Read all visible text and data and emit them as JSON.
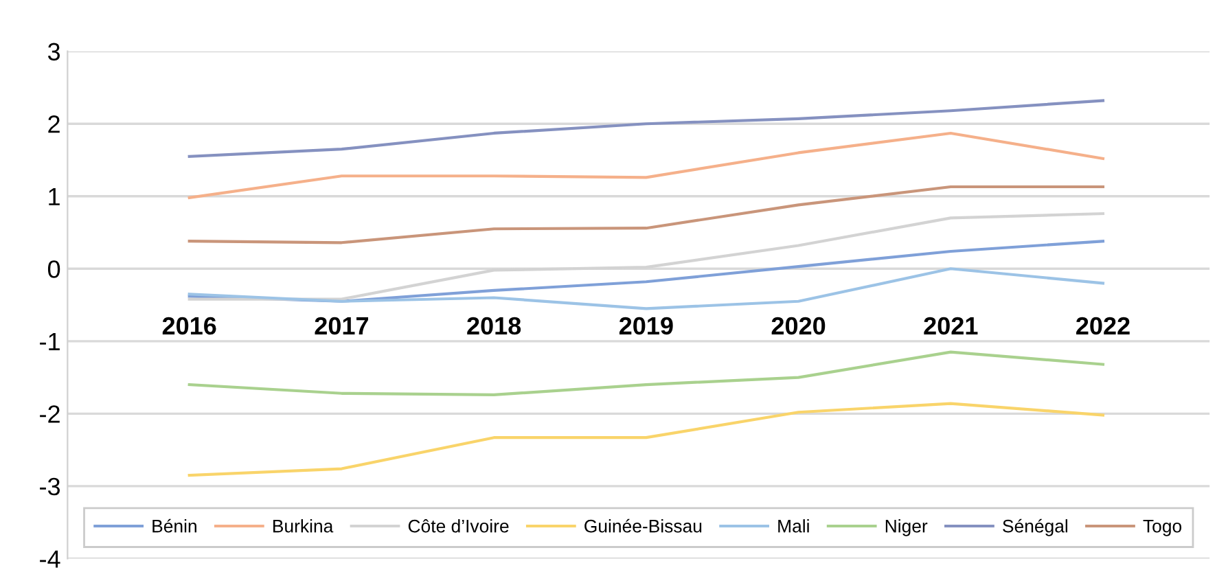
{
  "chart_data": {
    "type": "line",
    "categories": [
      "2016",
      "2017",
      "2018",
      "2019",
      "2020",
      "2021",
      "2022"
    ],
    "series": [
      {
        "name": "Bénin",
        "color": "#7fa0d8",
        "values": [
          -0.38,
          -0.45,
          -0.3,
          -0.18,
          0.03,
          0.24,
          0.38
        ]
      },
      {
        "name": "Burkina",
        "color": "#f5b08a",
        "values": [
          0.98,
          1.28,
          1.28,
          1.26,
          1.6,
          1.87,
          1.52
        ]
      },
      {
        "name": "Côte d’Ivoire",
        "color": "#d3d3d3",
        "values": [
          -0.42,
          -0.42,
          -0.02,
          0.02,
          0.32,
          0.7,
          0.76
        ]
      },
      {
        "name": "Guinée-Bissau",
        "color": "#f9d46a",
        "values": [
          -2.85,
          -2.76,
          -2.33,
          -2.33,
          -1.98,
          -1.86,
          -2.02
        ]
      },
      {
        "name": "Mali",
        "color": "#9cc3e6",
        "values": [
          -0.35,
          -0.45,
          -0.4,
          -0.55,
          -0.45,
          0.0,
          -0.2
        ]
      },
      {
        "name": "Niger",
        "color": "#a9d18e",
        "values": [
          -1.6,
          -1.72,
          -1.74,
          -1.6,
          -1.5,
          -1.15,
          -1.32
        ]
      },
      {
        "name": "Sénégal",
        "color": "#8591c0",
        "values": [
          1.55,
          1.65,
          1.87,
          2.0,
          2.07,
          2.18,
          2.32
        ]
      },
      {
        "name": "Togo",
        "color": "#c9957a",
        "values": [
          0.38,
          0.36,
          0.55,
          0.56,
          0.88,
          1.13,
          1.13
        ]
      }
    ],
    "ylim": [
      -4,
      3
    ],
    "yticks": [
      -4,
      -3,
      -2,
      -1,
      0,
      1,
      2,
      3
    ],
    "grid": "y",
    "legend": "bottom",
    "marker": "none",
    "line_style": "solid"
  }
}
